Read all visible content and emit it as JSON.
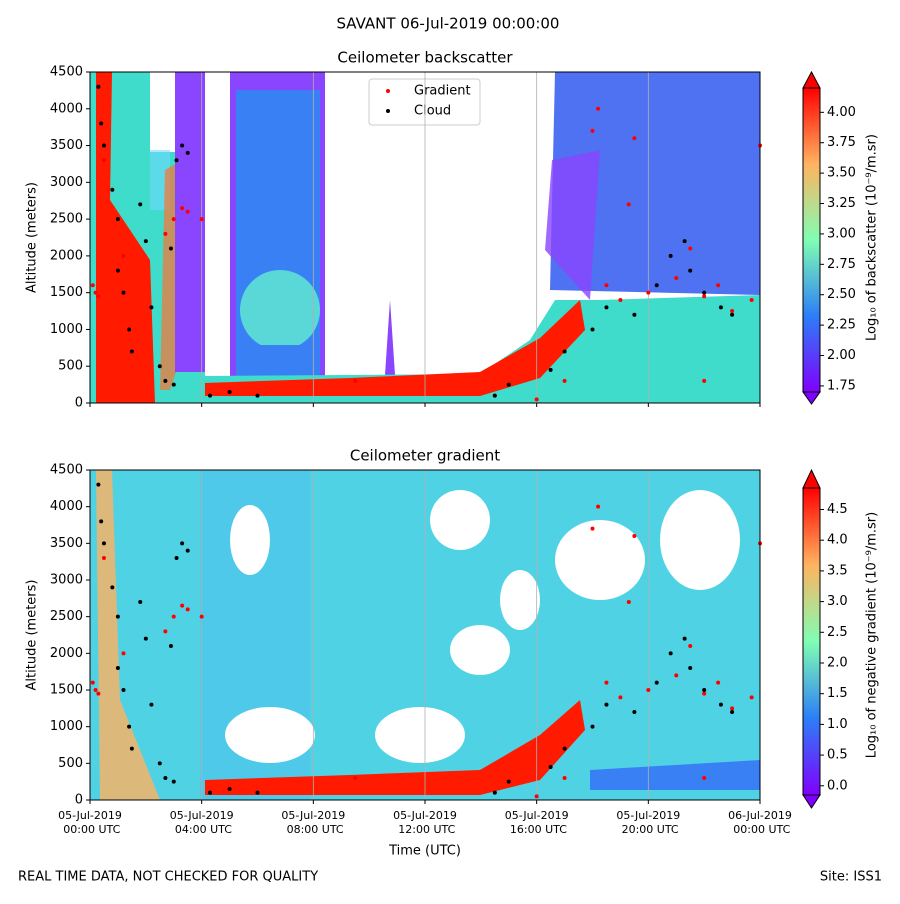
{
  "title": "SAVANT 06-Jul-2019 00:00:00",
  "footer_left": "REAL TIME DATA, NOT CHECKED FOR QUALITY",
  "footer_right": "Site: ISS1",
  "chart_data": [
    {
      "type": "scatter",
      "title": "Ceilometer backscatter",
      "ylabel": "Altitude (meters)",
      "legend": "upper center",
      "xlim": [
        0,
        24
      ],
      "xticks": [
        0,
        4,
        8,
        12,
        16,
        20,
        24
      ],
      "ylim": [
        0,
        4500
      ],
      "yticks": [
        0,
        500,
        1000,
        1500,
        2000,
        2500,
        3000,
        3500,
        4000,
        4500
      ],
      "series": [
        {
          "name": "Gradient",
          "color": "#ff0000",
          "x": [
            0.1,
            0.2,
            0.3,
            0.5,
            1.2,
            3.3,
            3.5,
            4.0,
            3.0,
            2.7,
            18.5,
            19,
            20,
            21,
            22,
            23,
            23.7,
            24,
            18,
            19.5,
            21.5,
            22.5,
            14.5,
            16,
            17,
            22,
            9.5,
            18.2,
            19.3
          ],
          "values": [
            1600,
            1500,
            1450,
            3300,
            2000,
            2650,
            2600,
            2500,
            2500,
            2300,
            1600,
            1400,
            1500,
            1700,
            1450,
            1250,
            1400,
            3500,
            3700,
            3600,
            2100,
            1600,
            100,
            50,
            300,
            300,
            300,
            4000,
            2700
          ]
        },
        {
          "name": "Cloud",
          "color": "#000000",
          "x": [
            0.3,
            0.4,
            0.5,
            0.8,
            1,
            1,
            1.2,
            1.4,
            1.5,
            1.8,
            2,
            2.2,
            2.5,
            2.7,
            3,
            3.1,
            3.3,
            3.5,
            2.9,
            4.3,
            5,
            6,
            14.5,
            15,
            16.5,
            17,
            18,
            18.5,
            19.5,
            20.3,
            20.8,
            21.3,
            21.5,
            22,
            22.6,
            23
          ],
          "values": [
            4300,
            3800,
            3500,
            2900,
            2500,
            1800,
            1500,
            1000,
            700,
            2700,
            2200,
            1300,
            500,
            300,
            250,
            3300,
            3500,
            3400,
            2100,
            100,
            150,
            100,
            100,
            250,
            450,
            700,
            1000,
            1300,
            1200,
            1600,
            2000,
            2200,
            1800,
            1500,
            1300,
            1200
          ]
        }
      ],
      "colorbar": {
        "label": "Log₁₀ of backscatter (10⁻⁹/m.sr)",
        "lim": [
          1.7,
          4.2
        ],
        "ticks": [
          1.75,
          {
            "value": 2,
            "label": "2.00"
          },
          2.25,
          {
            "value": 2.5,
            "label": "2.50"
          },
          2.75,
          {
            "value": 3,
            "label": "3.00"
          },
          3.25,
          {
            "value": 3.5,
            "label": "3.50"
          },
          3.75,
          {
            "value": 4,
            "label": "4.00"
          }
        ]
      }
    },
    {
      "type": "scatter",
      "title": "Ceilometer gradient",
      "ylabel": "Altitude (meters)",
      "xlabel": "Time (UTC)",
      "xlim": [
        0,
        24
      ],
      "xticks": [
        {
          "value": 0,
          "label": "05-Jul-2019 00:00 UTC"
        },
        {
          "value": 4,
          "label": "05-Jul-2019 04:00 UTC"
        },
        {
          "value": 8,
          "label": "05-Jul-2019 08:00 UTC"
        },
        {
          "value": 12,
          "label": "05-Jul-2019 12:00 UTC"
        },
        {
          "value": 16,
          "label": "05-Jul-2019 16:00 UTC"
        },
        {
          "value": 20,
          "label": "05-Jul-2019 20:00 UTC"
        },
        {
          "value": 24,
          "label": "06-Jul-2019 00:00 UTC"
        }
      ],
      "ylim": [
        0,
        4500
      ],
      "yticks": [
        0,
        500,
        1000,
        1500,
        2000,
        2500,
        3000,
        3500,
        4000,
        4500
      ],
      "series": [
        {
          "name": "Gradient",
          "color": "#ff0000",
          "x": [
            0.1,
            0.2,
            0.3,
            0.5,
            1.2,
            3.3,
            3.5,
            4.0,
            3.0,
            2.7,
            18.5,
            19,
            20,
            21,
            22,
            23,
            23.7,
            24,
            18,
            19.5,
            21.5,
            22.5,
            14.5,
            16,
            17,
            22,
            9.5,
            18.2,
            19.3
          ],
          "values": [
            1600,
            1500,
            1450,
            3300,
            2000,
            2650,
            2600,
            2500,
            2500,
            2300,
            1600,
            1400,
            1500,
            1700,
            1450,
            1250,
            1400,
            3500,
            3700,
            3600,
            2100,
            1600,
            100,
            50,
            300,
            300,
            300,
            4000,
            2700
          ]
        },
        {
          "name": "Cloud",
          "color": "#000000",
          "x": [
            0.3,
            0.4,
            0.5,
            0.8,
            1,
            1,
            1.2,
            1.4,
            1.5,
            1.8,
            2,
            2.2,
            2.5,
            2.7,
            3,
            3.1,
            3.3,
            3.5,
            2.9,
            4.3,
            5,
            6,
            14.5,
            15,
            16.5,
            17,
            18,
            18.5,
            19.5,
            20.3,
            20.8,
            21.3,
            21.5,
            22,
            22.6,
            23
          ],
          "values": [
            4300,
            3800,
            3500,
            2900,
            2500,
            1800,
            1500,
            1000,
            700,
            2700,
            2200,
            1300,
            500,
            300,
            250,
            3300,
            3500,
            3400,
            2100,
            100,
            150,
            100,
            100,
            250,
            450,
            700,
            1000,
            1300,
            1200,
            1600,
            2000,
            2200,
            1800,
            1500,
            1300,
            1200
          ]
        }
      ],
      "colorbar": {
        "label": "Log₁₀ of negative gradient (10⁻⁹/m.sr)",
        "lim": [
          -0.15,
          4.85
        ],
        "ticks": [
          {
            "value": 0,
            "label": "0.0"
          },
          0.5,
          {
            "value": 1,
            "label": "1.0"
          },
          1.5,
          {
            "value": 2,
            "label": "2.0"
          },
          2.5,
          {
            "value": 3,
            "label": "3.0"
          },
          3.5,
          {
            "value": 4,
            "label": "4.0"
          },
          4.5
        ]
      }
    }
  ]
}
